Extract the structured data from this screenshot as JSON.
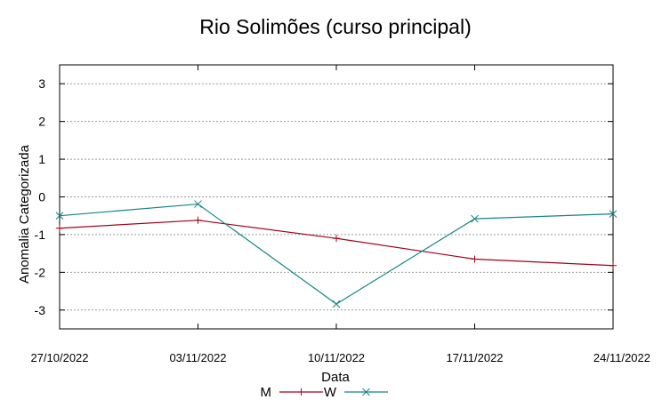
{
  "chart_data": {
    "type": "line",
    "title": "Rio Solimões (curso principal)",
    "xlabel": "Data",
    "ylabel": "Anomalia Categorizada",
    "categories": [
      "27/10/2022",
      "03/11/2022",
      "10/11/2022",
      "17/11/2022",
      "24/11/2022"
    ],
    "ylim": [
      -3.5,
      3.5
    ],
    "yticks": [
      "-3",
      "-2",
      "-1",
      "0",
      "1",
      "2",
      "3"
    ],
    "grid": true,
    "legend_position": "bottom-center",
    "series": [
      {
        "name": "M",
        "color": "#a0001a",
        "marker": "plus",
        "values": [
          -0.83,
          -0.62,
          -1.1,
          -1.65,
          -1.82
        ]
      },
      {
        "name": "W",
        "color": "#138585",
        "marker": "cross",
        "values": [
          -0.5,
          -0.19,
          -2.84,
          -0.58,
          -0.45
        ]
      }
    ]
  }
}
